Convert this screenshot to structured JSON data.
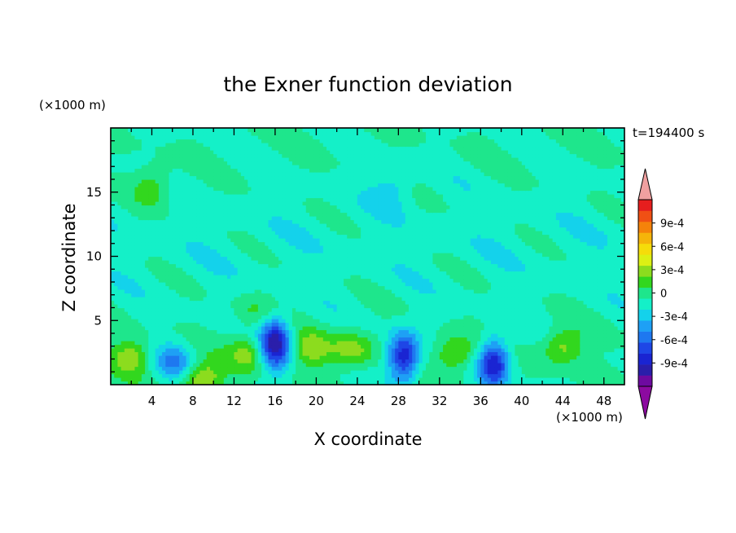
{
  "chart_data": {
    "type": "heatmap",
    "title": "the Exner function deviation",
    "xlabel": "X coordinate",
    "ylabel": "Z coordinate",
    "x_unit": "(×1000 m)",
    "y_unit": "(×1000 m)",
    "time_label": "t=194400 s",
    "xlim": [
      0,
      50
    ],
    "ylim": [
      0,
      20
    ],
    "x_ticks": [
      4,
      8,
      12,
      16,
      20,
      24,
      28,
      32,
      36,
      40,
      44,
      48
    ],
    "y_ticks": [
      5,
      10,
      15
    ],
    "colorbar": {
      "ticks": [
        "9e-4",
        "6e-4",
        "3e-4",
        "0",
        "-3e-4",
        "-6e-4",
        "-9e-4"
      ],
      "levels": [
        -0.0012,
        -0.00105,
        -0.0009,
        -0.00075,
        -0.0006,
        -0.00045,
        -0.0003,
        -0.00015,
        0,
        0.00015,
        0.0003,
        0.00045,
        0.0006,
        0.00075,
        0.0009,
        0.00105,
        0.0012
      ],
      "colors": [
        "#6e0aa0",
        "#2a1eaa",
        "#1a24d2",
        "#1e46e6",
        "#1e78f0",
        "#1ea0f5",
        "#14d2eb",
        "#14f0c8",
        "#1ee68c",
        "#32d71e",
        "#8cdc1e",
        "#dcf014",
        "#f5dc0a",
        "#f5b40a",
        "#f5820a",
        "#f05014",
        "#e61e1e"
      ],
      "under_color": "#8c0aa0",
      "over_color": "#f0a0a0"
    },
    "background_value": 0.0,
    "features": [
      {
        "x": 16.0,
        "z": 3.2,
        "value": -0.00105,
        "kind": "low"
      },
      {
        "x": 28.5,
        "z": 2.2,
        "value": -0.0009,
        "kind": "low"
      },
      {
        "x": 37.3,
        "z": 1.7,
        "value": -0.0009,
        "kind": "low"
      },
      {
        "x": 6.2,
        "z": 1.8,
        "value": -0.00045,
        "kind": "low"
      },
      {
        "x": 27.5,
        "z": 15.5,
        "value": -0.0002,
        "kind": "low"
      },
      {
        "x": 2.0,
        "z": 2.2,
        "value": 0.0004,
        "kind": "high"
      },
      {
        "x": 8.8,
        "z": 0.5,
        "value": 0.0005,
        "kind": "high"
      },
      {
        "x": 13.5,
        "z": 2.5,
        "value": 0.0004,
        "kind": "high"
      },
      {
        "x": 19.5,
        "z": 2.8,
        "value": 0.0004,
        "kind": "high"
      },
      {
        "x": 23.5,
        "z": 2.8,
        "value": 0.0004,
        "kind": "high"
      },
      {
        "x": 33.5,
        "z": 2.5,
        "value": 0.0004,
        "kind": "high"
      },
      {
        "x": 44.0,
        "z": 3.0,
        "value": 0.0004,
        "kind": "high"
      },
      {
        "x": 4.2,
        "z": 15.5,
        "value": 0.0003,
        "kind": "high"
      },
      {
        "x": 14.0,
        "z": 5.7,
        "value": 0.0002,
        "kind": "high"
      }
    ],
    "grid": false,
    "legend": "colorbar-right"
  }
}
